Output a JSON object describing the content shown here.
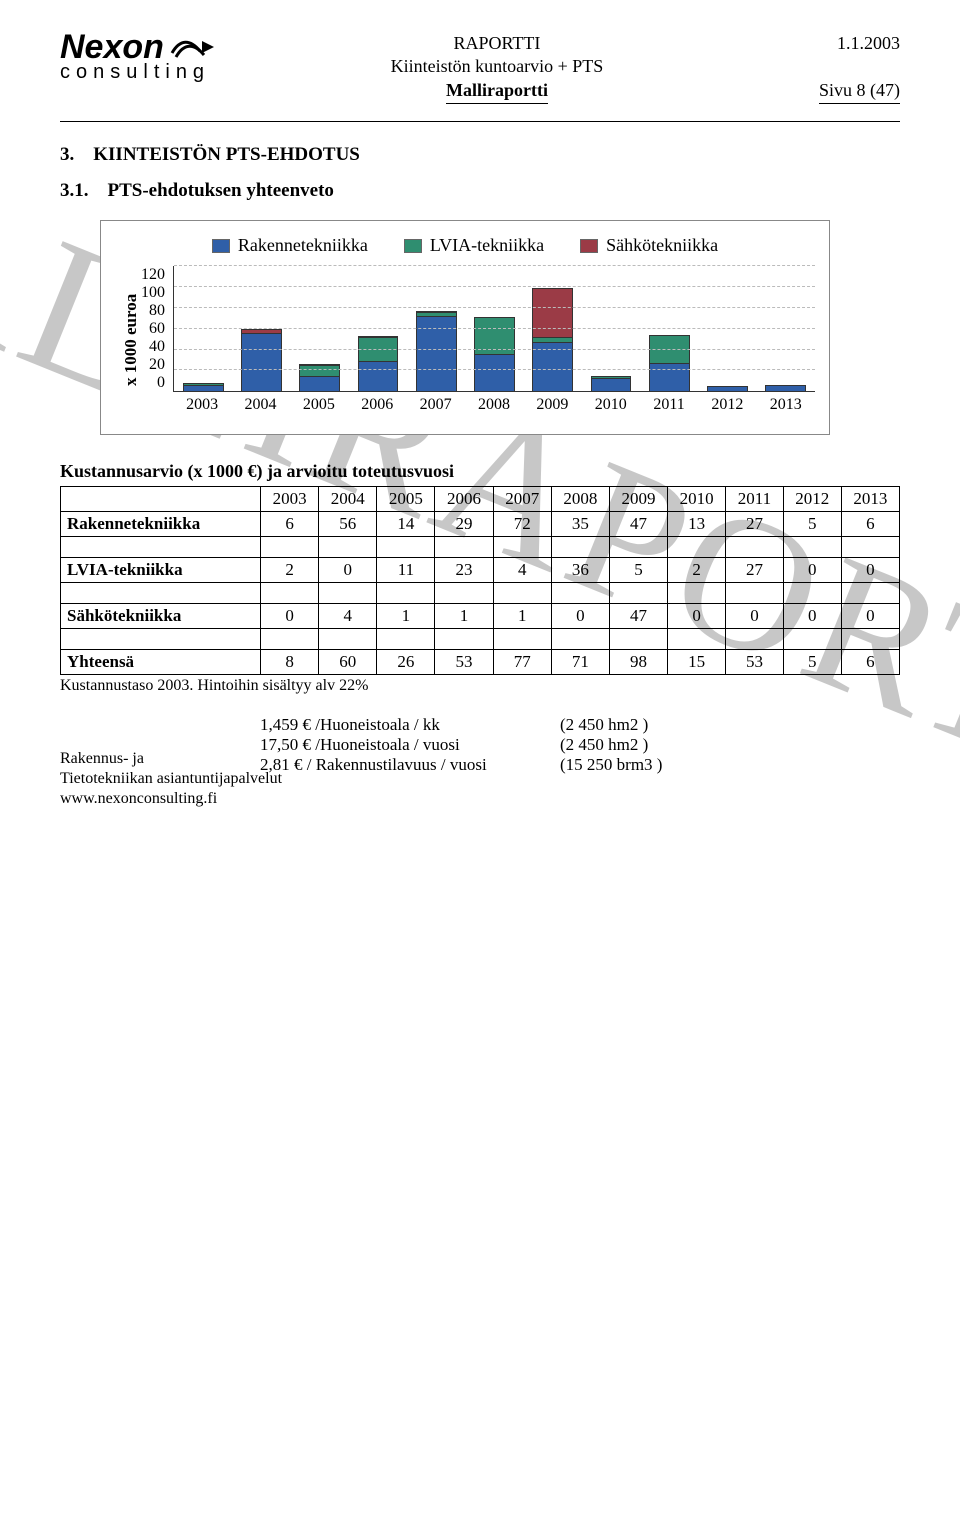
{
  "header": {
    "logo_name": "Nexon",
    "logo_sub": "consulting",
    "line1": "RAPORTTI",
    "line2": "Kiinteistön kuntoarvio + PTS",
    "line3": "Malliraportti",
    "date": "1.1.2003",
    "page": "Sivu 8 (47)"
  },
  "section": {
    "num": "3.",
    "title": "KIINTEISTÖN PTS-EHDOTUS",
    "sub_num": "3.1.",
    "sub_title": "PTS-ehdotuksen yhteenveto"
  },
  "chart": {
    "type": "stacked-bar",
    "ylabel": "x 1000 euroa",
    "ylim_max": 120,
    "ytick_step": 20,
    "yticks": [
      "120",
      "100",
      "80",
      "60",
      "40",
      "20",
      "0"
    ],
    "categories": [
      "2003",
      "2004",
      "2005",
      "2006",
      "2007",
      "2008",
      "2009",
      "2010",
      "2011",
      "2012",
      "2013"
    ],
    "series": [
      {
        "name": "Rakennetekniikka",
        "color": "#2f5fa8",
        "values": [
          6,
          56,
          14,
          29,
          72,
          35,
          47,
          13,
          27,
          5,
          6
        ]
      },
      {
        "name": "LVIA-tekniikka",
        "color": "#2f8e70",
        "values": [
          2,
          0,
          11,
          23,
          4,
          36,
          5,
          2,
          27,
          0,
          0
        ]
      },
      {
        "name": "Sähkötekniikka",
        "color": "#9b3b46",
        "values": [
          0,
          4,
          1,
          1,
          1,
          0,
          47,
          0,
          0,
          0,
          0
        ]
      }
    ],
    "grid_color": "#bbbbbb",
    "bg": "#ffffff"
  },
  "table": {
    "title": "Kustannusarvio (x 1000 €) ja arvioitu toteutusvuosi",
    "years": [
      "2003",
      "2004",
      "2005",
      "2006",
      "2007",
      "2008",
      "2009",
      "2010",
      "2011",
      "2012",
      "2013"
    ],
    "rows": [
      {
        "label": "Rakennetekniikka",
        "vals": [
          "6",
          "56",
          "14",
          "29",
          "72",
          "35",
          "47",
          "13",
          "27",
          "5",
          "6"
        ]
      },
      {
        "label": "LVIA-tekniikka",
        "vals": [
          "2",
          "0",
          "11",
          "23",
          "4",
          "36",
          "5",
          "2",
          "27",
          "0",
          "0"
        ]
      },
      {
        "label": "Sähkötekniikka",
        "vals": [
          "0",
          "4",
          "1",
          "1",
          "1",
          "0",
          "47",
          "0",
          "0",
          "0",
          "0"
        ]
      }
    ],
    "total": {
      "label": "Yhteensä",
      "vals": [
        "8",
        "60",
        "26",
        "53",
        "77",
        "71",
        "98",
        "15",
        "53",
        "5",
        "6"
      ]
    },
    "footnote": "Kustannustaso 2003. Hintoihin sisältyy alv 22%"
  },
  "calc": [
    {
      "left": "1,459 € /Huoneistoala / kk",
      "right": "(2 450   hm2 )"
    },
    {
      "left": "17,50 € /Huoneistoala / vuosi",
      "right": "(2 450   hm2 )"
    },
    {
      "left": "2,81 € / Rakennustilavuus / vuosi",
      "right": "(15 250   brm3 )"
    }
  ],
  "footer": {
    "l1": "Rakennus- ja",
    "l2": "Tietotekniikan asiantuntijapalvelut",
    "l3": "www.nexonconsulting.fi"
  },
  "watermark": "MALLIRAPORTTI"
}
